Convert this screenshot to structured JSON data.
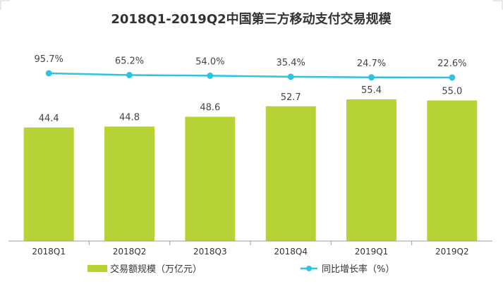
{
  "chart_data": {
    "type": "bar",
    "title": "2018Q1-2019Q2中国第三方移动支付交易规模",
    "categories": [
      "2018Q1",
      "2018Q2",
      "2018Q3",
      "2018Q4",
      "2019Q1",
      "2019Q2"
    ],
    "series": [
      {
        "name": "交易额规模（万亿元）",
        "type": "bar",
        "values": [
          44.4,
          44.8,
          48.6,
          52.7,
          55.4,
          55.0
        ],
        "labels": [
          "44.4",
          "44.8",
          "48.6",
          "52.7",
          "55.4",
          "55.0"
        ],
        "color": "#b5d334"
      },
      {
        "name": "同比增长率（%）",
        "type": "line",
        "values": [
          95.7,
          65.2,
          54.0,
          35.4,
          24.7,
          22.6
        ],
        "labels": [
          "95.7%",
          "65.2%",
          "54.0%",
          "35.4%",
          "24.7%",
          "22.6%"
        ],
        "color": "#2fc3e3"
      }
    ],
    "xlabel": "",
    "ylabel": "",
    "legend_position": "bottom",
    "grid": false
  }
}
